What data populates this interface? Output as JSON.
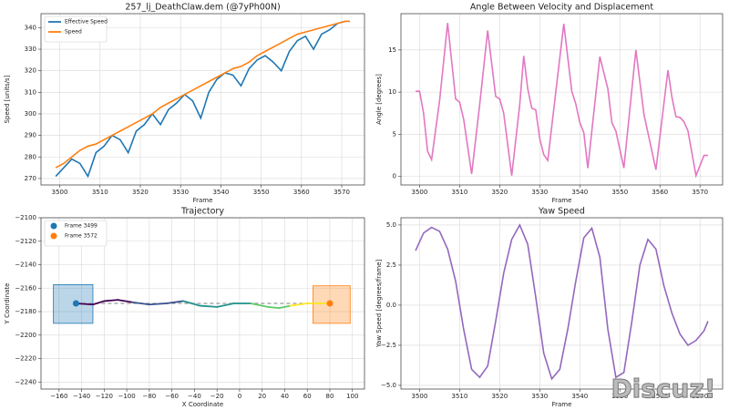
{
  "chart_data": [
    {
      "type": "line",
      "title": "257_lj_DeathClaw.dem (@7yPh00N)",
      "xlabel": "Frame",
      "ylabel": "Speed [units/s]",
      "x": [
        3499,
        3501,
        3503,
        3505,
        3507,
        3509,
        3511,
        3513,
        3515,
        3517,
        3519,
        3521,
        3523,
        3525,
        3527,
        3529,
        3531,
        3533,
        3535,
        3537,
        3539,
        3541,
        3543,
        3545,
        3547,
        3549,
        3551,
        3553,
        3555,
        3557,
        3559,
        3561,
        3563,
        3565,
        3567,
        3569,
        3571,
        3572
      ],
      "series": [
        {
          "name": "Effective Speed",
          "color": "#1f77b4",
          "values": [
            271,
            275,
            279,
            277,
            271,
            282,
            285,
            290,
            288,
            282,
            292,
            295,
            300,
            295,
            302,
            305,
            309,
            306,
            298,
            310,
            316,
            319,
            318,
            313,
            321,
            325,
            327,
            324,
            320,
            329,
            334,
            336,
            330,
            337,
            339,
            342,
            343,
            343
          ]
        },
        {
          "name": "Speed",
          "color": "#ff7f0e",
          "values": [
            275,
            277,
            280,
            283,
            285,
            286,
            288,
            290,
            292,
            294,
            296,
            298,
            300,
            303,
            305,
            307,
            309,
            311,
            313,
            315,
            317,
            319,
            321,
            322,
            324,
            327,
            329,
            331,
            333,
            335,
            337,
            338,
            339,
            340,
            341,
            342,
            343,
            343
          ]
        }
      ],
      "xlim": [
        3495.35,
        3575.65
      ],
      "xticks": [
        3500,
        3510,
        3520,
        3530,
        3540,
        3550,
        3560,
        3570
      ],
      "ylim": [
        267,
        346.5
      ],
      "yticks": [
        270,
        280,
        290,
        300,
        310,
        320,
        330,
        340
      ],
      "grid": true,
      "legend": "upper left"
    },
    {
      "type": "line",
      "title": "Angle Between Velocity and Displacement",
      "xlabel": "Frame",
      "ylabel": "Angle [degrees]",
      "x": [
        3499,
        3500,
        3501,
        3502,
        3503,
        3505,
        3507,
        3509,
        3510,
        3511,
        3513,
        3515,
        3517,
        3519,
        3520,
        3521,
        3523,
        3525,
        3526,
        3527,
        3528,
        3529,
        3530,
        3531,
        3532,
        3536,
        3538,
        3539,
        3540,
        3541,
        3542,
        3545,
        3547,
        3548,
        3549,
        3550,
        3551,
        3554,
        3556,
        3559,
        3562,
        3563,
        3564,
        3565,
        3566,
        3567,
        3569,
        3571,
        3572
      ],
      "series": [
        {
          "color": "#e377c2",
          "values": [
            10.1,
            10.1,
            7.5,
            3,
            2,
            9,
            18.2,
            9.2,
            8.8,
            6.8,
            0.3,
            8.5,
            17.3,
            9.5,
            9.2,
            7.5,
            0.1,
            8.5,
            14.3,
            10.4,
            8.1,
            7.9,
            4.5,
            2.6,
            1.9,
            18.1,
            10.1,
            8.6,
            6.4,
            5.2,
            1,
            14.2,
            10.4,
            6.4,
            5.4,
            3.2,
            1,
            15,
            7.4,
            0.8,
            12.6,
            9.4,
            7.1,
            7,
            6.5,
            5.4,
            0.1,
            2.5,
            2.5
          ]
        }
      ],
      "xlim": [
        3495.35,
        3575.65
      ],
      "xticks": [
        3500,
        3510,
        3520,
        3530,
        3540,
        3550,
        3560,
        3570
      ],
      "ylim": [
        -1,
        19.3
      ],
      "yticks": [
        0,
        5,
        10,
        15
      ],
      "grid": true
    },
    {
      "type": "scatter",
      "title": "Trajectory",
      "xlabel": "X Coordinate",
      "ylabel": "Y Coordinate",
      "series": [
        {
          "name": "Frame 3499",
          "color": "#1f77b4",
          "x": [
            -145
          ],
          "values": [
            -2173
          ]
        },
        {
          "name": "Frame 3572",
          "color": "#ff7f0e",
          "x": [
            80
          ],
          "values": [
            -2173
          ]
        }
      ],
      "path": {
        "x": [
          -145,
          -130,
          -120,
          -108,
          -95,
          -80,
          -65,
          -50,
          -35,
          -20,
          -5,
          10,
          25,
          35,
          45,
          60,
          70,
          80
        ],
        "values": [
          -2173,
          -2174,
          -2171,
          -2170,
          -2172,
          -2174,
          -2173,
          -2171,
          -2175,
          -2176,
          -2173,
          -2173,
          -2176,
          -2177,
          -2175,
          -2173,
          -2173,
          -2173
        ],
        "colors": [
          "#440154",
          "#3b528b",
          "#21918c",
          "#5ec962",
          "#fde725"
        ]
      },
      "boxes": [
        {
          "x": [
            -165,
            -130
          ],
          "values": [
            -2190,
            -2157
          ],
          "color": "#1f77b4"
        },
        {
          "x": [
            65,
            98
          ],
          "values": [
            -2190,
            -2158
          ],
          "color": "#ff7f0e"
        }
      ],
      "xlim": [
        -176,
        110.7
      ],
      "xticks": [
        {
          "value": -160,
          "label": "−160"
        },
        {
          "value": -140,
          "label": "−140"
        },
        {
          "value": -120,
          "label": "−120"
        },
        {
          "value": -100,
          "label": "−100"
        },
        {
          "value": -80,
          "label": "−80"
        },
        {
          "value": -60,
          "label": "−60"
        },
        {
          "value": -40,
          "label": "−40"
        },
        {
          "value": -20,
          "label": "−20"
        },
        0,
        20,
        40,
        60,
        80,
        100
      ],
      "ylim": [
        -2246,
        -2100
      ],
      "yticks": [
        {
          "value": -2100,
          "label": "−2100"
        },
        {
          "value": -2120,
          "label": "−2120"
        },
        {
          "value": -2140,
          "label": "−2140"
        },
        {
          "value": -2160,
          "label": "−2160"
        },
        {
          "value": -2180,
          "label": "−2180"
        },
        {
          "value": -2200,
          "label": "−2200"
        },
        {
          "value": -2220,
          "label": "−2220"
        },
        {
          "value": -2240,
          "label": "−2240"
        }
      ],
      "grid": true,
      "legend": "upper left"
    },
    {
      "type": "line",
      "title": "Yaw Speed",
      "xlabel": "Frame",
      "ylabel": "Yaw Speed [degrees/frame]",
      "x": [
        3499,
        3501,
        3503,
        3505,
        3507,
        3509,
        3511,
        3513,
        3515,
        3517,
        3519,
        3521,
        3523,
        3525,
        3527,
        3529,
        3531,
        3533,
        3535,
        3537,
        3539,
        3541,
        3543,
        3545,
        3547,
        3549,
        3551,
        3553,
        3555,
        3557,
        3559,
        3561,
        3563,
        3565,
        3567,
        3569,
        3571,
        3572
      ],
      "series": [
        {
          "color": "#9467bd",
          "values": [
            3.4,
            4.5,
            4.85,
            4.6,
            3.5,
            1.5,
            -1.5,
            -4,
            -4.5,
            -3.8,
            -1,
            2,
            4.1,
            5,
            3.8,
            0.5,
            -3,
            -4.6,
            -4,
            -1.5,
            1.5,
            4.2,
            4.8,
            3,
            -1.5,
            -4.5,
            -4.2,
            -1,
            2.5,
            4.1,
            3.5,
            1.2,
            -0.5,
            -1.8,
            -2.5,
            -2.2,
            -1.6,
            -1
          ]
        }
      ],
      "xlim": [
        3495.35,
        3575.65
      ],
      "xticks": [
        3500,
        3510,
        3520,
        3530,
        3540,
        3550,
        3560,
        3570
      ],
      "ylim": [
        -5.23,
        5.45
      ],
      "yticks": [
        {
          "value": -5,
          "label": "−5.0"
        },
        {
          "value": -2.5,
          "label": "−2.5"
        },
        {
          "value": 0,
          "label": "0.0"
        },
        {
          "value": 2.5,
          "label": "2.5"
        },
        {
          "value": 5,
          "label": "5.0"
        }
      ],
      "grid": true
    }
  ],
  "watermark": "Discuz!"
}
